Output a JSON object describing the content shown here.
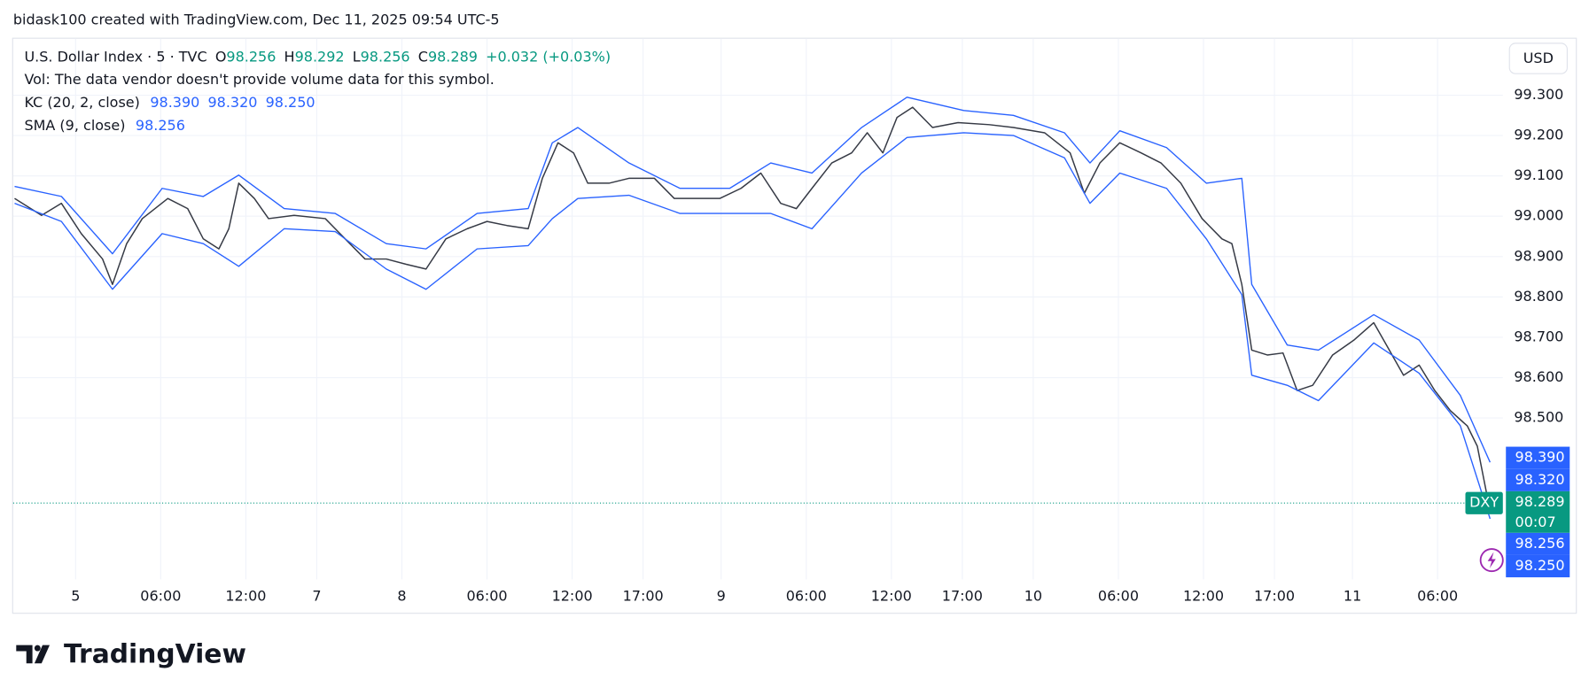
{
  "chart_data": {
    "type": "line",
    "attribution": "bidask100 created with TradingView.com, Dec 11, 2025 09:54 UTC-5",
    "legend": {
      "symbol": "U.S. Dollar Index · 5 · TVC",
      "ohlc": [
        {
          "key": "O",
          "value": "98.256"
        },
        {
          "key": "H",
          "value": "98.292"
        },
        {
          "key": "L",
          "value": "98.256"
        },
        {
          "key": "C",
          "value": "98.289"
        }
      ],
      "change": "+0.032 (+0.03%)",
      "volume": "Vol: The data vendor doesn't provide volume data for this symbol.",
      "indicators": [
        {
          "name": "KC (20, 2, close)",
          "values": [
            "98.390",
            "98.320",
            "98.250"
          ]
        },
        {
          "name": "SMA (9, close)",
          "values": [
            "98.256"
          ]
        }
      ]
    },
    "currency": "USD",
    "brand": "TradingView",
    "series": [
      {
        "color": "#363a45",
        "x": [
          -4.3,
          -2.4,
          -1.0,
          0.4,
          1.9,
          2.6,
          3.6,
          4.7,
          6.5,
          7.9,
          9.0,
          10.1,
          10.8,
          11.5,
          12.6,
          13.6,
          15.4,
          17.6,
          19.0,
          20.4,
          21.9,
          23.3,
          24.7,
          26.1,
          27.6,
          29.0,
          30.4,
          31.9,
          32.9,
          34.0,
          35.1,
          36.1,
          37.6,
          39.0,
          40.8,
          42.2,
          44.0,
          45.4,
          46.9,
          48.3,
          49.7,
          50.8,
          51.9,
          53.3,
          54.7,
          55.8,
          56.9,
          57.9,
          59.0,
          60.4,
          62.2,
          64.4,
          66.1,
          68.3,
          70.1,
          71.1,
          72.2,
          73.6,
          75.1,
          76.5,
          77.9,
          79.4,
          80.8,
          81.5,
          82.2,
          82.9,
          84.0,
          85.1,
          86.1,
          87.2,
          88.6,
          90.1,
          91.5,
          92.6,
          93.6,
          94.7,
          95.8,
          96.9,
          98.1,
          98.8,
          99.5,
          99.7
        ],
        "values": [
          99.044,
          99.002,
          99.032,
          98.957,
          98.894,
          98.831,
          98.932,
          98.994,
          99.044,
          99.019,
          98.944,
          98.919,
          98.969,
          99.082,
          99.044,
          98.994,
          99.002,
          98.994,
          98.944,
          98.894,
          98.894,
          98.881,
          98.869,
          98.944,
          98.969,
          98.987,
          98.977,
          98.969,
          99.094,
          99.182,
          99.157,
          99.082,
          99.082,
          99.094,
          99.094,
          99.044,
          99.044,
          99.044,
          99.069,
          99.107,
          99.032,
          99.019,
          99.069,
          99.132,
          99.157,
          99.207,
          99.157,
          99.245,
          99.27,
          99.22,
          99.232,
          99.227,
          99.22,
          99.207,
          99.157,
          99.057,
          99.132,
          99.182,
          99.157,
          99.132,
          99.082,
          98.994,
          98.944,
          98.932,
          98.831,
          98.668,
          98.656,
          98.661,
          98.568,
          98.581,
          98.656,
          98.693,
          98.736,
          98.668,
          98.606,
          98.631,
          98.568,
          98.518,
          98.48,
          98.43,
          98.305,
          98.289
        ]
      },
      {
        "color": "#2962ff",
        "x": [
          -4.3,
          -1.0,
          2.6,
          6.1,
          9.0,
          11.5,
          14.7,
          18.3,
          21.9,
          24.7,
          28.3,
          31.9,
          33.6,
          35.4,
          39.0,
          42.6,
          46.1,
          49.0,
          51.9,
          55.4,
          58.6,
          62.6,
          66.1,
          69.7,
          71.5,
          73.6,
          76.9,
          79.7,
          82.2,
          82.9,
          85.4,
          87.6,
          91.5,
          94.7,
          97.6,
          99.7
        ],
        "values": [
          99.074,
          99.049,
          98.907,
          99.069,
          99.049,
          99.102,
          99.019,
          99.007,
          98.932,
          98.919,
          99.007,
          99.019,
          99.182,
          99.22,
          99.132,
          99.069,
          99.069,
          99.132,
          99.107,
          99.22,
          99.295,
          99.262,
          99.25,
          99.207,
          99.132,
          99.212,
          99.17,
          99.082,
          99.094,
          98.831,
          98.681,
          98.668,
          98.756,
          98.693,
          98.556,
          98.39
        ]
      },
      {
        "color": "#2962ff",
        "x": [
          -4.3,
          -1.0,
          2.6,
          6.1,
          9.0,
          11.5,
          14.7,
          18.3,
          21.9,
          24.7,
          28.3,
          31.9,
          33.6,
          35.4,
          39.0,
          42.6,
          46.1,
          49.0,
          51.9,
          55.4,
          58.6,
          62.6,
          66.1,
          69.7,
          71.5,
          73.6,
          76.9,
          79.7,
          82.2,
          82.9,
          85.4,
          87.6,
          91.5,
          94.7,
          97.6,
          99.7
        ],
        "values": [
          99.032,
          98.987,
          98.819,
          98.957,
          98.932,
          98.876,
          98.969,
          98.962,
          98.869,
          98.819,
          98.919,
          98.927,
          98.994,
          99.044,
          99.052,
          99.007,
          99.007,
          99.007,
          98.969,
          99.107,
          99.195,
          99.207,
          99.2,
          99.145,
          99.032,
          99.107,
          99.069,
          98.944,
          98.806,
          98.606,
          98.581,
          98.543,
          98.686,
          98.611,
          98.481,
          98.25
        ]
      }
    ],
    "last_price": {
      "value": 98.289,
      "symbol": "DXY",
      "countdown": "00:07",
      "color": "#089981"
    },
    "price_tags": [
      {
        "value": 98.39,
        "label": "98.390",
        "color": "#2962ff"
      },
      {
        "value": 98.32,
        "label": "98.320",
        "color": "#2962ff"
      },
      {
        "value": 98.256,
        "label": "98.256",
        "color": "#2962ff"
      },
      {
        "value": 98.25,
        "label": "98.250",
        "color": "#2962ff"
      }
    ],
    "xlim": [
      -4.4,
      100.6
    ],
    "xticks": [
      {
        "value": 0,
        "label": "5"
      },
      {
        "value": 6,
        "label": "06:00"
      },
      {
        "value": 12,
        "label": "12:00"
      },
      {
        "value": 17,
        "label": "7"
      },
      {
        "value": 23,
        "label": "8"
      },
      {
        "value": 29,
        "label": "06:00"
      },
      {
        "value": 35,
        "label": "12:00"
      },
      {
        "value": 40,
        "label": "17:00"
      },
      {
        "value": 45.5,
        "label": "9"
      },
      {
        "value": 51.5,
        "label": "06:00"
      },
      {
        "value": 57.5,
        "label": "12:00"
      },
      {
        "value": 62.5,
        "label": "17:00"
      },
      {
        "value": 67.5,
        "label": "10"
      },
      {
        "value": 73.5,
        "label": "06:00"
      },
      {
        "value": 79.5,
        "label": "12:00"
      },
      {
        "value": 84.5,
        "label": "17:00"
      },
      {
        "value": 90,
        "label": "11"
      },
      {
        "value": 96,
        "label": "06:00"
      }
    ],
    "ylim": [
      98.1,
      99.44
    ],
    "yticks": [
      {
        "value": 98.5,
        "label": "98.500"
      },
      {
        "value": 98.6,
        "label": "98.600"
      },
      {
        "value": 98.7,
        "label": "98.700"
      },
      {
        "value": 98.8,
        "label": "98.800"
      },
      {
        "value": 98.9,
        "label": "98.900"
      },
      {
        "value": 99.0,
        "label": "99.000"
      },
      {
        "value": 99.1,
        "label": "99.100"
      },
      {
        "value": 99.2,
        "label": "99.200"
      },
      {
        "value": 99.3,
        "label": "99.300"
      }
    ],
    "grid": true
  }
}
